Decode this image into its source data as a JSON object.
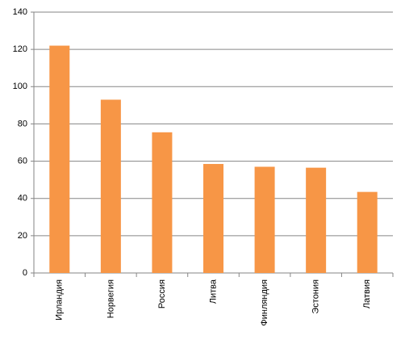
{
  "chart_data": {
    "type": "bar",
    "categories": [
      "Ирландия",
      "Норвегия",
      "Россия",
      "Литва",
      "Финляндия",
      "Эстония",
      "Латвия"
    ],
    "values": [
      122,
      93,
      75.5,
      58.5,
      57,
      56.5,
      43.5
    ],
    "color": "#f79646",
    "ylim": [
      0,
      140
    ],
    "yticks": [
      0,
      20,
      40,
      60,
      80,
      100,
      120,
      140
    ],
    "grid": true
  }
}
